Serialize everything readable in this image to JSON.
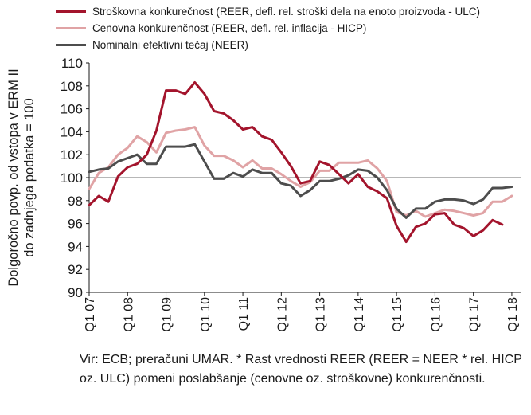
{
  "chart_data": {
    "type": "line",
    "ylabel": "Dolgoročno povp. od vstopa v ERM II do zadnjega podatka = 100",
    "ylabel_lines": [
      "Dolgoročno povp. od vstopa v ERM II",
      "do zadnjega podatka = 100"
    ],
    "ylim": [
      90,
      110
    ],
    "yticks": [
      90,
      92,
      94,
      96,
      98,
      100,
      102,
      104,
      106,
      108,
      110
    ],
    "x_range": [
      2007.0,
      2018.25
    ],
    "xticks": [
      {
        "label": "Q1 07",
        "x": 2007
      },
      {
        "label": "Q1 08",
        "x": 2008
      },
      {
        "label": "Q1 09",
        "x": 2009
      },
      {
        "label": "Q1 10",
        "x": 2010
      },
      {
        "label": "Q1 11",
        "x": 2011
      },
      {
        "label": "Q1 12",
        "x": 2012
      },
      {
        "label": "Q1 13",
        "x": 2013
      },
      {
        "label": "Q1 14",
        "x": 2014
      },
      {
        "label": "Q1 15",
        "x": 2015
      },
      {
        "label": "Q1 16",
        "x": 2016
      },
      {
        "label": "Q1 17",
        "x": 2017
      },
      {
        "label": "Q1 18",
        "x": 2018
      }
    ],
    "reference_line": 100,
    "legend_placement": "top",
    "series": [
      {
        "name": "Stroškovna konkurečnost (REER, defl. rel. stroški dela na enoto proizvoda - ULC)",
        "color": "#a3142c",
        "x": [
          2007.0,
          2007.25,
          2007.5,
          2007.75,
          2008.0,
          2008.25,
          2008.5,
          2008.75,
          2009.0,
          2009.25,
          2009.5,
          2009.75,
          2010.0,
          2010.25,
          2010.5,
          2010.75,
          2011.0,
          2011.25,
          2011.5,
          2011.75,
          2012.0,
          2012.25,
          2012.5,
          2012.75,
          2013.0,
          2013.25,
          2013.5,
          2013.75,
          2014.0,
          2014.25,
          2014.5,
          2014.75,
          2015.0,
          2015.25,
          2015.5,
          2015.75,
          2016.0,
          2016.25,
          2016.5,
          2016.75,
          2017.0,
          2017.25,
          2017.5,
          2017.75
        ],
        "y": [
          97.6,
          98.4,
          97.9,
          100.1,
          100.9,
          101.2,
          102.0,
          104.1,
          107.6,
          107.6,
          107.3,
          108.3,
          107.3,
          105.8,
          105.6,
          105.0,
          104.2,
          104.4,
          103.6,
          103.3,
          102.2,
          101.0,
          99.5,
          99.7,
          101.4,
          101.1,
          100.3,
          99.5,
          100.3,
          99.2,
          98.8,
          98.2,
          95.8,
          94.4,
          95.7,
          96.0,
          96.8,
          96.9,
          95.9,
          95.6,
          94.9,
          95.4,
          96.3,
          95.9
        ]
      },
      {
        "name": "Cenovna konkurenčnost (REER, defl. rel. inflacija - HICP)",
        "color": "#e0a3a5",
        "x": [
          2007.0,
          2007.25,
          2007.5,
          2007.75,
          2008.0,
          2008.25,
          2008.5,
          2008.75,
          2009.0,
          2009.25,
          2009.5,
          2009.75,
          2010.0,
          2010.25,
          2010.5,
          2010.75,
          2011.0,
          2011.25,
          2011.5,
          2011.75,
          2012.0,
          2012.25,
          2012.5,
          2012.75,
          2013.0,
          2013.25,
          2013.5,
          2013.75,
          2014.0,
          2014.25,
          2014.5,
          2014.75,
          2015.0,
          2015.25,
          2015.5,
          2015.75,
          2016.0,
          2016.25,
          2016.5,
          2016.75,
          2017.0,
          2017.25,
          2017.5,
          2017.75,
          2018.0
        ],
        "y": [
          99.0,
          100.4,
          100.9,
          102.0,
          102.6,
          103.6,
          103.1,
          102.2,
          103.9,
          104.1,
          104.2,
          104.4,
          102.8,
          101.9,
          101.9,
          101.5,
          100.9,
          101.5,
          100.8,
          100.8,
          100.3,
          99.7,
          99.2,
          99.6,
          100.6,
          100.6,
          101.3,
          101.3,
          101.3,
          101.5,
          100.8,
          99.7,
          97.0,
          96.7,
          97.1,
          96.6,
          96.9,
          97.2,
          97.1,
          96.9,
          96.7,
          96.9,
          97.9,
          97.9,
          98.4
        ]
      },
      {
        "name": "Nominalni efektivni tečaj (NEER)",
        "color": "#4d4d4d",
        "x": [
          2007.0,
          2007.25,
          2007.5,
          2007.75,
          2008.0,
          2008.25,
          2008.5,
          2008.75,
          2009.0,
          2009.25,
          2009.5,
          2009.75,
          2010.0,
          2010.25,
          2010.5,
          2010.75,
          2011.0,
          2011.25,
          2011.5,
          2011.75,
          2012.0,
          2012.25,
          2012.5,
          2012.75,
          2013.0,
          2013.25,
          2013.5,
          2013.75,
          2014.0,
          2014.25,
          2014.5,
          2014.75,
          2015.0,
          2015.25,
          2015.5,
          2015.75,
          2016.0,
          2016.25,
          2016.5,
          2016.75,
          2017.0,
          2017.25,
          2017.5,
          2017.75,
          2018.0
        ],
        "y": [
          100.5,
          100.7,
          100.8,
          101.4,
          101.7,
          102.0,
          101.2,
          101.2,
          102.7,
          102.7,
          102.7,
          102.9,
          101.4,
          99.9,
          99.9,
          100.4,
          100.1,
          100.7,
          100.4,
          100.4,
          99.5,
          99.3,
          98.4,
          98.9,
          99.7,
          99.7,
          99.9,
          100.2,
          100.7,
          100.6,
          100.0,
          98.9,
          97.3,
          96.5,
          97.3,
          97.3,
          97.9,
          98.1,
          98.1,
          98.0,
          97.7,
          98.1,
          99.1,
          99.1,
          99.2
        ]
      }
    ]
  },
  "source_text": "Vir: ECB; preračuni UMAR. * Rast vrednosti REER (REER = NEER * rel. HICP oz. ULC) pomeni poslabšanje (cenovne oz. stroškovne) konkurenčnosti."
}
